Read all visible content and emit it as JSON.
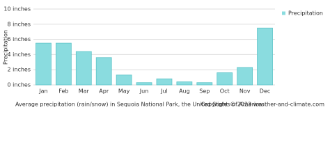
{
  "chart_data": {
    "type": "bar",
    "title": "Average precipitation (rain/snow) in Sequoia National Park, the United States of America",
    "copyright": "Copyright © 2023  weather-and-climate.com",
    "y_label": "Precipitation",
    "categories": [
      "Jan",
      "Feb",
      "Mar",
      "Apr",
      "May",
      "Jun",
      "Jul",
      "Aug",
      "Sep",
      "Oct",
      "Nov",
      "Dec"
    ],
    "series": [
      {
        "name": "Precipitation",
        "color": "#8adcdf",
        "values": [
          5.5,
          5.5,
          4.4,
          3.6,
          1.3,
          0.3,
          0.8,
          0.4,
          0.3,
          1.6,
          2.3,
          7.5
        ]
      }
    ],
    "ylim": [
      0,
      10
    ],
    "yticks": [
      {
        "value": 0,
        "label": "0 inches"
      },
      {
        "value": 2,
        "label": "2 inches"
      },
      {
        "value": 4,
        "label": "4 inches"
      },
      {
        "value": 6,
        "label": "6 inches"
      },
      {
        "value": 8,
        "label": "8 inches"
      },
      {
        "value": 10,
        "label": "10 inches"
      }
    ],
    "grid": true,
    "legend": "right"
  }
}
